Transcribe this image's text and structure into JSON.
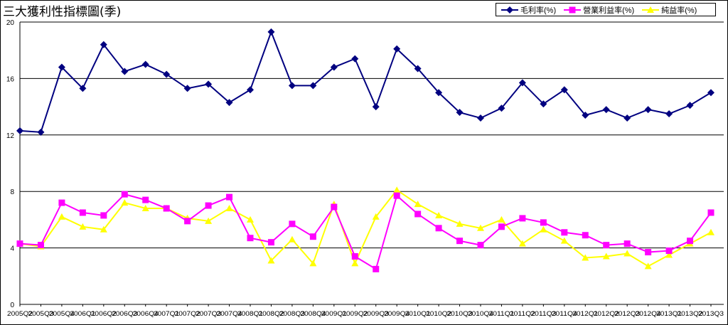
{
  "chart_data": {
    "type": "line",
    "title": "三大獲利性指標圖(季)",
    "ylim": [
      0,
      20
    ],
    "yticks": [
      "0",
      "4",
      "8",
      "12",
      "16",
      "20"
    ],
    "grid": "horizontal",
    "legend_position": "top-right",
    "categories": [
      "2005Q2",
      "2005Q3",
      "2005Q4",
      "2006Q1",
      "2006Q2",
      "2006Q3",
      "2006Q4",
      "2007Q1",
      "2007Q2",
      "2007Q3",
      "2007Q4",
      "2008Q1",
      "2008Q2",
      "2008Q3",
      "2008Q4",
      "2009Q1",
      "2009Q2",
      "2009Q3",
      "2009Q4",
      "2010Q1",
      "2010Q2",
      "2010Q3",
      "2010Q4",
      "2011Q1",
      "2011Q2",
      "2011Q3",
      "2011Q4",
      "2012Q1",
      "2012Q2",
      "2012Q3",
      "2012Q4",
      "2013Q1",
      "2013Q2",
      "2013Q3"
    ],
    "series": [
      {
        "name": "毛利率(%)",
        "color": "#000080",
        "marker": "diamond",
        "values": [
          12.3,
          12.2,
          16.8,
          15.3,
          18.4,
          16.5,
          17.0,
          16.3,
          15.3,
          15.6,
          14.3,
          15.2,
          19.3,
          15.5,
          15.5,
          16.8,
          17.4,
          14.0,
          18.1,
          16.7,
          15.0,
          13.6,
          13.2,
          13.9,
          15.7,
          14.2,
          15.2,
          13.4,
          13.8,
          13.2,
          13.8,
          13.5,
          14.1,
          15.0
        ]
      },
      {
        "name": "營業利益率(%)",
        "color": "#FF00FF",
        "marker": "square",
        "values": [
          4.3,
          4.2,
          7.2,
          6.5,
          6.3,
          7.8,
          7.4,
          6.8,
          5.9,
          7.0,
          7.6,
          4.7,
          4.4,
          5.7,
          4.8,
          6.9,
          3.4,
          2.5,
          7.7,
          6.4,
          5.4,
          4.5,
          4.2,
          5.5,
          6.1,
          5.8,
          5.1,
          4.9,
          4.2,
          4.3,
          3.7,
          3.8,
          4.5,
          6.5
        ]
      },
      {
        "name": "純益率(%)",
        "color": "#FFFF00",
        "marker": "triangle",
        "values": [
          4.3,
          4.1,
          6.2,
          5.5,
          5.3,
          7.2,
          6.8,
          6.8,
          6.1,
          5.9,
          6.8,
          6.0,
          3.1,
          4.6,
          2.9,
          7.1,
          2.9,
          6.2,
          8.1,
          7.1,
          6.3,
          5.7,
          5.4,
          6.0,
          4.3,
          5.3,
          4.5,
          3.3,
          3.4,
          3.6,
          2.7,
          3.5,
          4.3,
          5.1
        ]
      }
    ]
  }
}
